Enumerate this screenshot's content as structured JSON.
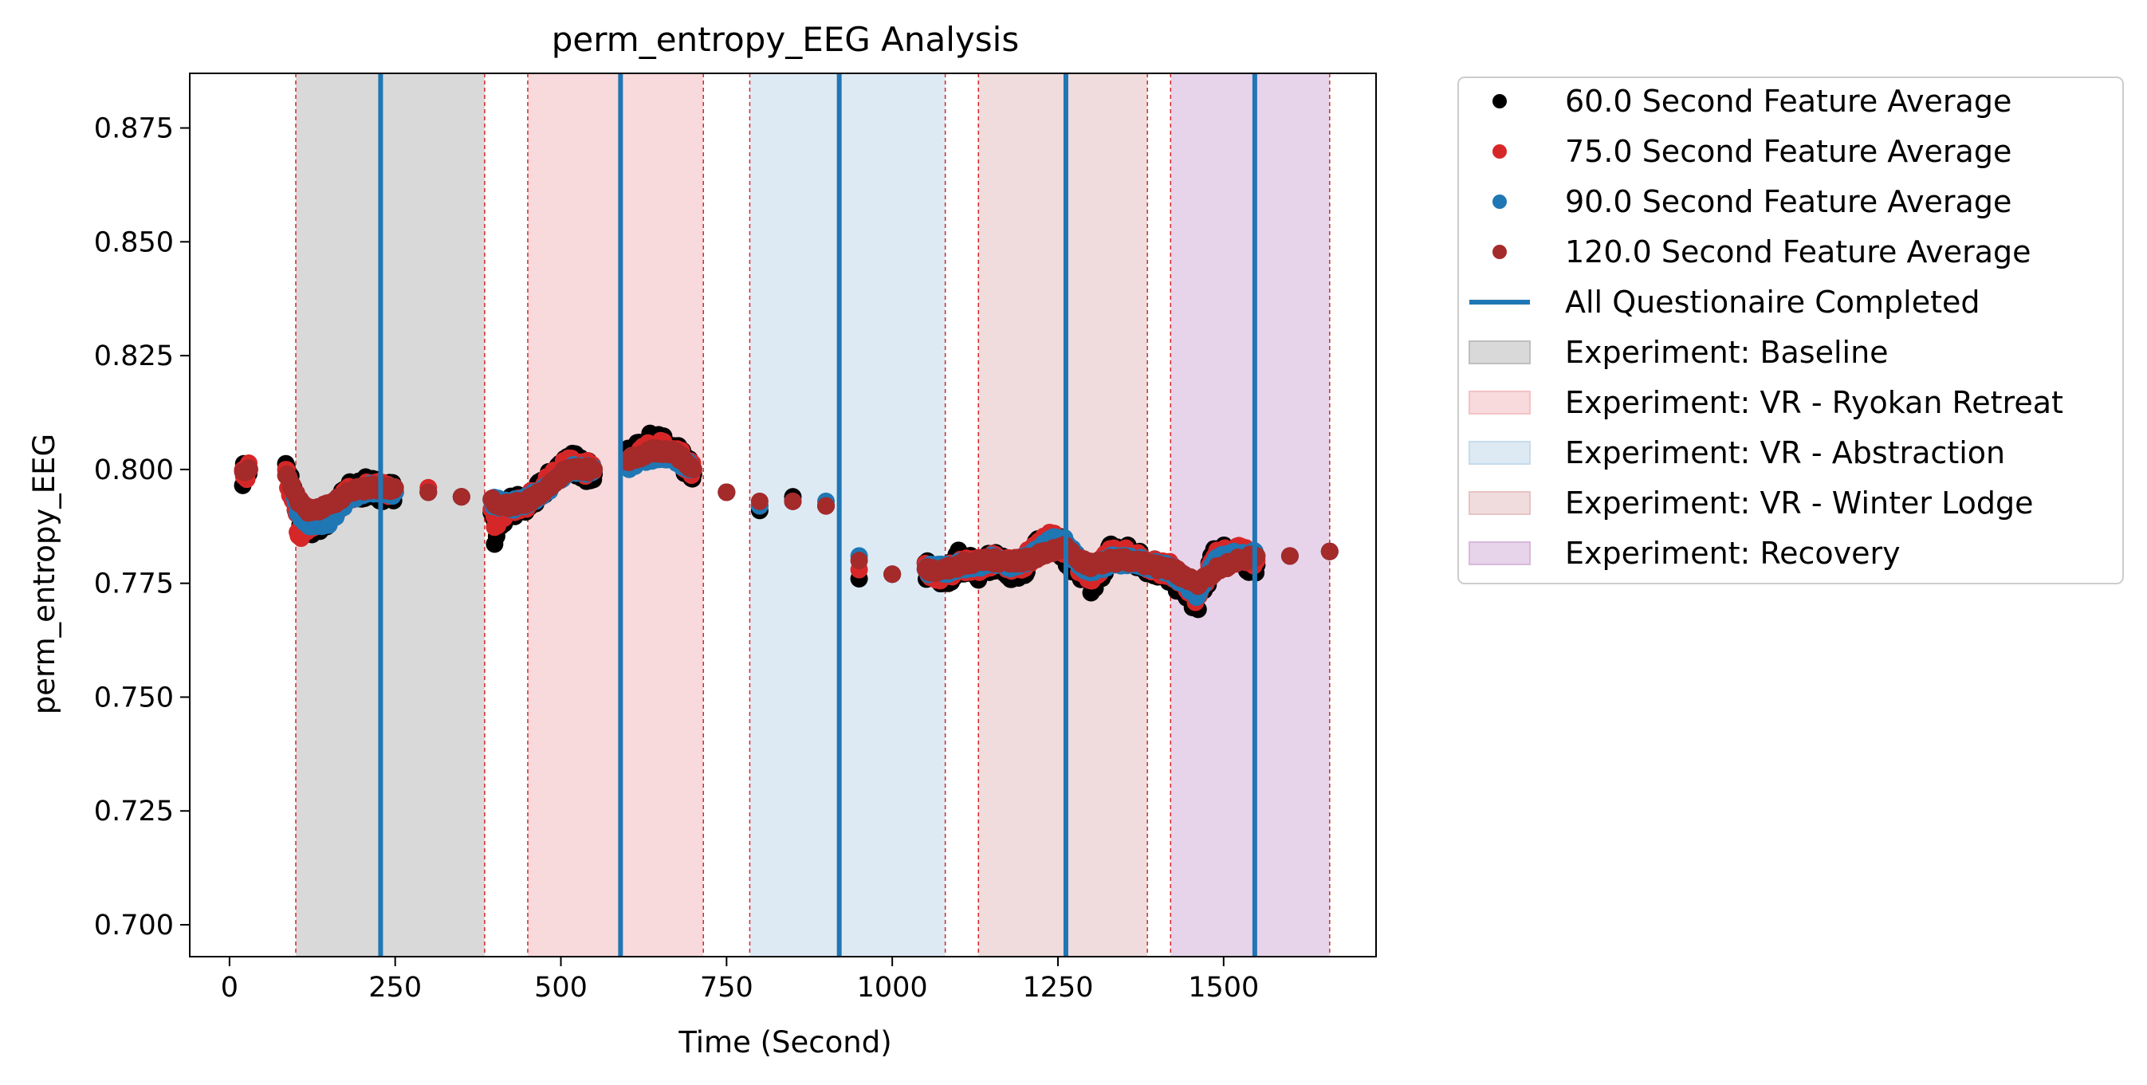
{
  "chart_data": {
    "type": "scatter",
    "title": "perm_entropy_EEG Analysis",
    "xlabel": "Time (Second)",
    "ylabel": "perm_entropy_EEG",
    "xlim": [
      -60,
      1730
    ],
    "ylim": [
      0.693,
      0.887
    ],
    "xticks": [
      0,
      250,
      500,
      750,
      1000,
      1250,
      1500
    ],
    "xtick_labels": [
      "0",
      "250",
      "500",
      "750",
      "1000",
      "1250",
      "1500"
    ],
    "yticks": [
      0.7,
      0.725,
      0.75,
      0.775,
      0.8,
      0.825,
      0.85,
      0.875
    ],
    "ytick_labels": [
      "0.700",
      "0.725",
      "0.750",
      "0.775",
      "0.800",
      "0.825",
      "0.850",
      "0.875"
    ],
    "experiments": [
      {
        "name": "Experiment: Baseline",
        "segments": [
          [
            100,
            385
          ]
        ],
        "color": "#bfbfbf",
        "alpha": 0.6
      },
      {
        "name": "Experiment: VR - Ryokan Retreat",
        "segments": [
          [
            450,
            715
          ]
        ],
        "color": "#f4c2c5",
        "alpha": 0.6
      },
      {
        "name": "Experiment: VR - Abstraction",
        "segments": [
          [
            785,
            1080
          ]
        ],
        "color": "#c6dcec",
        "alpha": 0.6
      },
      {
        "name": "Experiment: VR - Winter Lodge",
        "segments": [
          [
            1130,
            1385
          ]
        ],
        "color": "#e6c4c4",
        "alpha": 0.6
      },
      {
        "name": "Experiment: Recovery",
        "segments": [
          [
            1420,
            1660
          ]
        ],
        "color": "#d8b8dc",
        "alpha": 0.6
      }
    ],
    "boundaries": [
      100,
      385,
      450,
      715,
      785,
      1080,
      1130,
      1385,
      1420,
      1660
    ],
    "questionnaire_completed": {
      "name": "All Questionaire Completed",
      "x": [
        228,
        590,
        920,
        1262,
        1547
      ],
      "color": "#1f77b4"
    },
    "series": [
      {
        "name": "60.0 Second Feature Average",
        "color": "#000000",
        "jitter": 0.0025,
        "x": [
          20,
          30,
          85,
          95,
          105,
          120,
          150,
          180,
          210,
          250,
          300,
          350,
          395,
          400,
          410,
          420,
          450,
          480,
          510,
          550,
          600,
          640,
          670,
          700,
          750,
          800,
          850,
          900,
          950,
          1000,
          1050,
          1080,
          1100,
          1130,
          1150,
          1180,
          1200,
          1240,
          1260,
          1280,
          1300,
          1330,
          1360,
          1390,
          1420,
          1460,
          1490,
          1520,
          1550,
          1600,
          1660
        ],
        "y": [
          0.799,
          0.8,
          0.8,
          0.796,
          0.79,
          0.787,
          0.79,
          0.795,
          0.796,
          0.795,
          0.795,
          0.794,
          0.793,
          0.786,
          0.789,
          0.792,
          0.792,
          0.797,
          0.802,
          0.799,
          0.802,
          0.806,
          0.804,
          0.799,
          0.795,
          0.791,
          0.794,
          0.792,
          0.776,
          0.777,
          0.778,
          0.776,
          0.78,
          0.778,
          0.78,
          0.778,
          0.779,
          0.786,
          0.782,
          0.778,
          0.774,
          0.782,
          0.781,
          0.779,
          0.777,
          0.771,
          0.782,
          0.781,
          0.779,
          0.781,
          0.782
        ]
      },
      {
        "name": "75.0 Second Feature Average",
        "color": "#d62728",
        "jitter": 0.0018,
        "x": [
          20,
          30,
          85,
          95,
          105,
          120,
          150,
          180,
          210,
          250,
          300,
          350,
          395,
          400,
          410,
          420,
          450,
          480,
          510,
          550,
          600,
          640,
          670,
          700,
          750,
          800,
          850,
          900,
          950,
          1000,
          1050,
          1080,
          1100,
          1130,
          1150,
          1180,
          1200,
          1240,
          1260,
          1280,
          1300,
          1330,
          1360,
          1390,
          1420,
          1460,
          1490,
          1520,
          1550,
          1600,
          1660
        ],
        "y": [
          0.799,
          0.8,
          0.799,
          0.794,
          0.786,
          0.788,
          0.79,
          0.795,
          0.796,
          0.795,
          0.796,
          0.794,
          0.793,
          0.789,
          0.79,
          0.792,
          0.793,
          0.797,
          0.801,
          0.8,
          0.802,
          0.805,
          0.804,
          0.8,
          0.795,
          0.792,
          0.793,
          0.792,
          0.778,
          0.777,
          0.778,
          0.777,
          0.779,
          0.779,
          0.78,
          0.779,
          0.78,
          0.785,
          0.783,
          0.779,
          0.777,
          0.781,
          0.781,
          0.779,
          0.778,
          0.772,
          0.781,
          0.782,
          0.78,
          0.781,
          0.782
        ]
      },
      {
        "name": "90.0 Second Feature Average",
        "color": "#1f77b4",
        "jitter": 0.0012,
        "x": [
          95,
          105,
          120,
          150,
          180,
          210,
          250,
          300,
          350,
          395,
          420,
          450,
          480,
          510,
          550,
          600,
          640,
          670,
          700,
          750,
          800,
          850,
          900,
          950,
          1000,
          1050,
          1080,
          1100,
          1130,
          1150,
          1180,
          1200,
          1240,
          1260,
          1280,
          1300,
          1330,
          1360,
          1390,
          1420,
          1460,
          1490,
          1520,
          1550,
          1600,
          1660
        ],
        "y": [
          0.795,
          0.79,
          0.788,
          0.789,
          0.794,
          0.796,
          0.795,
          0.795,
          0.794,
          0.793,
          0.792,
          0.793,
          0.796,
          0.8,
          0.8,
          0.801,
          0.803,
          0.803,
          0.8,
          0.795,
          0.792,
          0.793,
          0.793,
          0.781,
          0.777,
          0.778,
          0.778,
          0.779,
          0.779,
          0.78,
          0.779,
          0.78,
          0.784,
          0.784,
          0.78,
          0.778,
          0.78,
          0.78,
          0.779,
          0.778,
          0.773,
          0.78,
          0.781,
          0.781,
          0.781,
          0.782
        ]
      },
      {
        "name": "120.0 Second Feature Average",
        "color": "#a52a2a",
        "jitter": 0.0008,
        "x": [
          20,
          30,
          85,
          95,
          105,
          120,
          150,
          180,
          210,
          250,
          300,
          350,
          395,
          420,
          450,
          480,
          510,
          550,
          600,
          640,
          670,
          700,
          750,
          800,
          850,
          900,
          950,
          1000,
          1050,
          1080,
          1100,
          1130,
          1150,
          1180,
          1200,
          1240,
          1260,
          1280,
          1300,
          1330,
          1360,
          1390,
          1420,
          1460,
          1490,
          1520,
          1550,
          1600,
          1660
        ],
        "y": [
          0.799,
          0.8,
          0.799,
          0.796,
          0.793,
          0.791,
          0.792,
          0.795,
          0.796,
          0.796,
          0.795,
          0.794,
          0.793,
          0.792,
          0.793,
          0.796,
          0.8,
          0.8,
          0.802,
          0.804,
          0.804,
          0.8,
          0.795,
          0.793,
          0.793,
          0.792,
          0.78,
          0.777,
          0.778,
          0.778,
          0.779,
          0.78,
          0.78,
          0.78,
          0.78,
          0.782,
          0.783,
          0.78,
          0.779,
          0.78,
          0.78,
          0.779,
          0.778,
          0.775,
          0.778,
          0.78,
          0.781,
          0.781,
          0.782
        ]
      }
    ],
    "legend": {
      "placement": "outside-right-top",
      "entries": [
        {
          "label": "60.0 Second Feature Average",
          "kind": "marker",
          "color": "#000000"
        },
        {
          "label": "75.0 Second Feature Average",
          "kind": "marker",
          "color": "#d62728"
        },
        {
          "label": "90.0 Second Feature Average",
          "kind": "marker",
          "color": "#1f77b4"
        },
        {
          "label": "120.0 Second Feature Average",
          "kind": "marker",
          "color": "#a52a2a"
        },
        {
          "label": "All Questionaire Completed",
          "kind": "line",
          "color": "#1f77b4"
        },
        {
          "label": "Experiment: Baseline",
          "kind": "patch",
          "color": "#bfbfbf"
        },
        {
          "label": "Experiment: VR - Ryokan Retreat",
          "kind": "patch",
          "color": "#f4c2c5"
        },
        {
          "label": "Experiment: VR - Abstraction",
          "kind": "patch",
          "color": "#c6dcec"
        },
        {
          "label": "Experiment: VR - Winter Lodge",
          "kind": "patch",
          "color": "#e6c4c4"
        },
        {
          "label": "Experiment: Recovery",
          "kind": "patch",
          "color": "#d8b8dc"
        }
      ]
    }
  }
}
